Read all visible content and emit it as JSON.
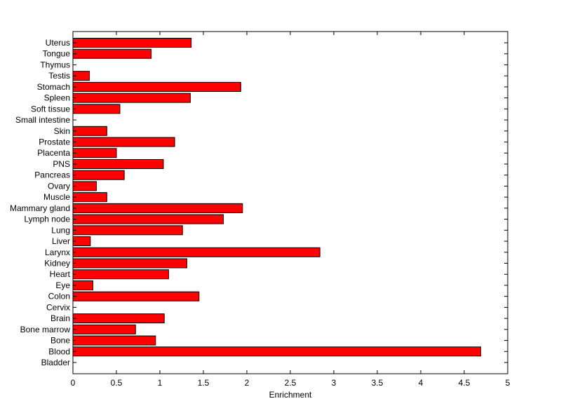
{
  "chart_data": {
    "type": "bar",
    "orientation": "horizontal",
    "categories": [
      "Bladder",
      "Blood",
      "Bone",
      "Bone marrow",
      "Brain",
      "Cervix",
      "Colon",
      "Eye",
      "Heart",
      "Kidney",
      "Larynx",
      "Liver",
      "Lung",
      "Lymph node",
      "Mammary gland",
      "Muscle",
      "Ovary",
      "Pancreas",
      "PNS",
      "Placenta",
      "Prostate",
      "Skin",
      "Small intestine",
      "Soft tissue",
      "Spleen",
      "Stomach",
      "Testis",
      "Thymus",
      "Tongue",
      "Uterus"
    ],
    "values": [
      0,
      4.69,
      0.95,
      0.72,
      1.05,
      0,
      1.45,
      0.23,
      1.1,
      1.31,
      2.84,
      0.2,
      1.26,
      1.73,
      1.95,
      0.39,
      0.27,
      0.59,
      1.04,
      0.5,
      1.17,
      0.39,
      0,
      0.54,
      1.35,
      1.93,
      0.19,
      0,
      0.9,
      1.36
    ],
    "xlabel": "Enrichment",
    "ylabel": "",
    "title": "",
    "xlim": [
      0,
      5
    ],
    "xticks": [
      "0",
      "0.5",
      "1",
      "1.5",
      "2",
      "2.5",
      "3",
      "3.5",
      "4",
      "4.5",
      "5"
    ],
    "grid": false,
    "bar_color": "#ff0000"
  }
}
